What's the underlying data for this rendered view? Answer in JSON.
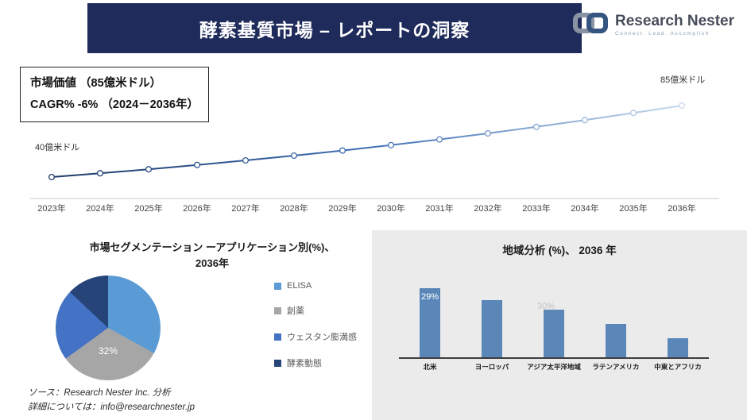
{
  "header": {
    "title": "酵素基質市場 – レポートの洞察"
  },
  "logo": {
    "brand": "Research Nester",
    "tagline": "Connect. Lead. Accomplish"
  },
  "info_box": {
    "line1": "市場価値 （85億米ドル）",
    "line2": "CAGR% -6% （2024－2036年）"
  },
  "footer": {
    "source": "ソース：Research Nester Inc. 分析",
    "contact": "詳細については：info@researchnester.jp"
  },
  "chart_data": [
    {
      "type": "line",
      "title": "",
      "x": [
        "2023年",
        "2024年",
        "2025年",
        "2026年",
        "2027年",
        "2028年",
        "2029年",
        "2030年",
        "2031年",
        "2032年",
        "2033年",
        "2034年",
        "2035年",
        "2036年"
      ],
      "values": [
        40,
        42.4,
        44.9,
        47.6,
        50.5,
        53.5,
        56.7,
        60.1,
        63.7,
        67.5,
        71.6,
        75.9,
        80.4,
        85
      ],
      "ylim": [
        40,
        85
      ],
      "annotations": [
        "40億米ドル",
        "85億米ドル"
      ],
      "line_colors": [
        "#1e3a66",
        "#3f6fb4",
        "#c6d8ec"
      ]
    },
    {
      "type": "pie",
      "title": "市場セグメンテーション ーアプリケーション別(%)、\n2036年",
      "labels": [
        "ELISA",
        "創薬",
        "ウェスタン膨満感",
        "酵素動態"
      ],
      "values": [
        33,
        32,
        22,
        13
      ],
      "colors": [
        "#5b9bd5",
        "#a6a6a6",
        "#4472c4",
        "#264478"
      ],
      "visible_value_label": "32%",
      "legend_position": "right"
    },
    {
      "type": "bar",
      "title": "地域分析 (%)、 2036 年",
      "categories": [
        "北米",
        "ヨーロッパ",
        "アジア太平洋地域",
        "ラテンアメリカ",
        "中東とアフリカ"
      ],
      "values": [
        29,
        24,
        20,
        14,
        8
      ],
      "value_labels": [
        "29%",
        "",
        "",
        "",
        ""
      ],
      "floating_label": "30%",
      "bar_color": "#5b87b8",
      "ylim": [
        0,
        40
      ]
    }
  ]
}
